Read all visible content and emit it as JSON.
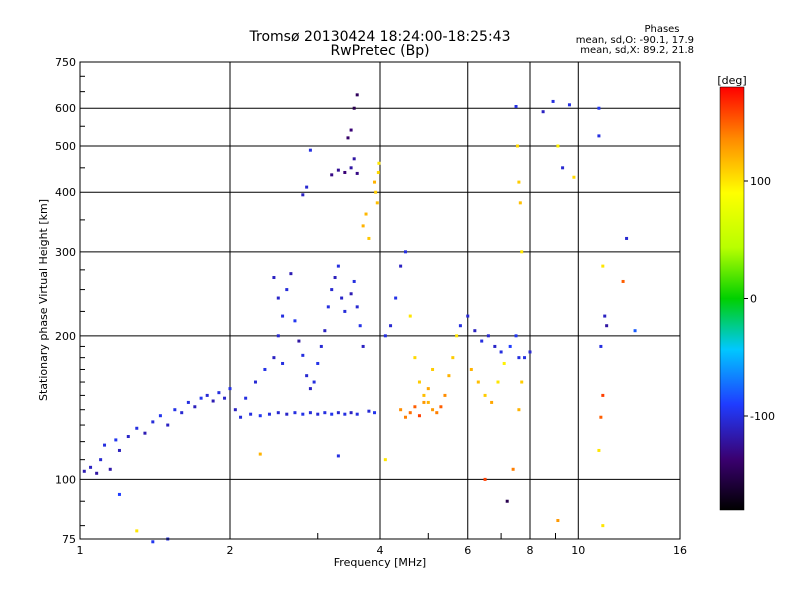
{
  "chart_data": {
    "type": "scatter",
    "title": "Tromsø 20130424 18:24:00-18:25:43",
    "subtitle": "RwPretec (Bp)",
    "xlabel": "Frequency [MHz]",
    "ylabel": "Stationary phase Virtual Height [km]",
    "x_scale": "log",
    "y_scale": "log",
    "xlim": [
      1,
      16
    ],
    "ylim": [
      75,
      750
    ],
    "x_ticks": [
      1,
      2,
      4,
      6,
      8,
      10,
      16
    ],
    "x_tick_labels": [
      "1",
      "2",
      "4",
      "6",
      "8",
      "10",
      "16"
    ],
    "y_ticks": [
      75,
      100,
      200,
      300,
      400,
      500,
      600,
      750
    ],
    "y_tick_labels": [
      "75",
      "100",
      "200",
      "300",
      "400",
      "500",
      "600",
      "750"
    ],
    "grid": true,
    "stats": {
      "heading": "Phases",
      "line_o": "mean, sd,O: -90.1, 17.9",
      "line_x": "mean, sd,X:  89.2, 21.8"
    },
    "colorbar": {
      "label": "[deg]",
      "range": [
        -180,
        180
      ],
      "ticks": [
        100,
        0,
        -100
      ],
      "tick_labels": [
        "100",
        "0",
        "-100"
      ]
    },
    "series": [
      {
        "points": [
          [
            1.02,
            104,
            -115
          ],
          [
            1.05,
            106,
            -110
          ],
          [
            1.08,
            103,
            -120
          ],
          [
            1.1,
            110,
            -105
          ],
          [
            1.12,
            118,
            -100
          ],
          [
            1.15,
            105,
            -118
          ],
          [
            1.18,
            121,
            -95
          ],
          [
            1.2,
            115,
            -112
          ],
          [
            1.25,
            123,
            -108
          ],
          [
            1.3,
            128,
            -100
          ],
          [
            1.35,
            125,
            -115
          ],
          [
            1.4,
            132,
            -102
          ],
          [
            1.45,
            136,
            -96
          ],
          [
            1.5,
            130,
            -110
          ],
          [
            1.55,
            140,
            -98
          ],
          [
            1.6,
            138,
            -105
          ],
          [
            1.65,
            145,
            -100
          ],
          [
            1.7,
            142,
            -112
          ],
          [
            1.75,
            148,
            -95
          ],
          [
            1.8,
            150,
            -104
          ],
          [
            1.85,
            146,
            -115
          ],
          [
            1.9,
            152,
            -100
          ],
          [
            1.95,
            148,
            -108
          ],
          [
            2.0,
            155,
            -98
          ],
          [
            2.05,
            140,
            -110
          ],
          [
            2.1,
            135,
            -102
          ],
          [
            2.2,
            137,
            -100
          ],
          [
            2.3,
            136,
            -95
          ],
          [
            2.4,
            137,
            -100
          ],
          [
            2.5,
            138,
            -105
          ],
          [
            2.6,
            137,
            -108
          ],
          [
            2.7,
            138,
            -100
          ],
          [
            2.8,
            137,
            -98
          ],
          [
            2.9,
            138,
            -102
          ],
          [
            3.0,
            137,
            -104
          ],
          [
            3.1,
            138,
            -100
          ],
          [
            3.2,
            137,
            -96
          ],
          [
            3.3,
            138,
            -106
          ],
          [
            3.4,
            137,
            -100
          ],
          [
            3.5,
            138,
            -110
          ],
          [
            3.6,
            137,
            -100
          ],
          [
            3.8,
            139,
            -104
          ],
          [
            3.9,
            138,
            -96
          ],
          [
            2.15,
            148,
            -100
          ],
          [
            2.25,
            160,
            -104
          ],
          [
            2.35,
            170,
            -98
          ],
          [
            2.45,
            180,
            -110
          ],
          [
            2.55,
            175,
            -100
          ],
          [
            2.5,
            200,
            -105
          ],
          [
            2.55,
            220,
            -100
          ],
          [
            2.45,
            265,
            -110
          ],
          [
            2.5,
            240,
            -108
          ],
          [
            2.6,
            250,
            -102
          ],
          [
            2.65,
            270,
            -115
          ],
          [
            2.7,
            215,
            -95
          ],
          [
            2.75,
            195,
            -120
          ],
          [
            2.8,
            182,
            -100
          ],
          [
            2.85,
            165,
            -105
          ],
          [
            2.9,
            155,
            -110
          ],
          [
            2.95,
            160,
            -100
          ],
          [
            3.0,
            175,
            -98
          ],
          [
            3.05,
            190,
            -104
          ],
          [
            3.1,
            205,
            -110
          ],
          [
            3.15,
            230,
            -100
          ],
          [
            3.2,
            250,
            -105
          ],
          [
            3.25,
            265,
            -112
          ],
          [
            3.3,
            280,
            -100
          ],
          [
            3.35,
            240,
            -108
          ],
          [
            3.4,
            225,
            -102
          ],
          [
            3.5,
            245,
            -115
          ],
          [
            3.55,
            260,
            -100
          ],
          [
            3.6,
            230,
            -105
          ],
          [
            3.65,
            210,
            -98
          ],
          [
            3.7,
            190,
            -110
          ],
          [
            3.2,
            435,
            -130
          ],
          [
            3.3,
            445,
            -125
          ],
          [
            3.4,
            440,
            -135
          ],
          [
            3.5,
            450,
            -120
          ],
          [
            3.6,
            438,
            -130
          ],
          [
            3.45,
            520,
            -140
          ],
          [
            3.5,
            540,
            -135
          ],
          [
            3.55,
            600,
            -150
          ],
          [
            3.6,
            640,
            -145
          ],
          [
            2.8,
            395,
            -110
          ],
          [
            2.85,
            410,
            -105
          ],
          [
            2.9,
            490,
            -100
          ],
          [
            3.55,
            470,
            -120
          ],
          [
            3.9,
            420,
            120
          ],
          [
            3.92,
            400,
            110
          ],
          [
            3.95,
            380,
            115
          ],
          [
            3.97,
            440,
            105
          ],
          [
            3.98,
            460,
            100
          ],
          [
            3.7,
            340,
            120
          ],
          [
            3.75,
            360,
            118
          ],
          [
            3.8,
            320,
            112
          ],
          [
            4.1,
            200,
            -100
          ],
          [
            4.2,
            210,
            -105
          ],
          [
            4.3,
            240,
            -98
          ],
          [
            4.4,
            280,
            -110
          ],
          [
            4.5,
            300,
            -100
          ],
          [
            4.6,
            220,
            100
          ],
          [
            4.7,
            180,
            105
          ],
          [
            4.8,
            160,
            110
          ],
          [
            4.9,
            150,
            115
          ],
          [
            5.0,
            145,
            120
          ],
          [
            5.1,
            140,
            130
          ],
          [
            5.2,
            138,
            140
          ],
          [
            5.3,
            142,
            150
          ],
          [
            5.4,
            150,
            135
          ],
          [
            5.5,
            165,
            120
          ],
          [
            5.6,
            180,
            110
          ],
          [
            5.7,
            200,
            100
          ],
          [
            4.4,
            140,
            135
          ],
          [
            4.5,
            135,
            140
          ],
          [
            4.6,
            138,
            145
          ],
          [
            4.7,
            142,
            150
          ],
          [
            4.8,
            136,
            160
          ],
          [
            4.9,
            145,
            130
          ],
          [
            5.0,
            155,
            125
          ],
          [
            5.1,
            170,
            110
          ],
          [
            5.8,
            210,
            -100
          ],
          [
            6.0,
            220,
            -105
          ],
          [
            6.2,
            205,
            -110
          ],
          [
            6.4,
            195,
            -100
          ],
          [
            6.6,
            200,
            -105
          ],
          [
            6.8,
            190,
            -108
          ],
          [
            7.0,
            185,
            -100
          ],
          [
            6.1,
            170,
            120
          ],
          [
            6.3,
            160,
            115
          ],
          [
            6.5,
            150,
            110
          ],
          [
            6.7,
            145,
            125
          ],
          [
            6.9,
            160,
            100
          ],
          [
            7.1,
            175,
            95
          ],
          [
            7.3,
            190,
            -90
          ],
          [
            7.5,
            200,
            -95
          ],
          [
            7.6,
            180,
            -100
          ],
          [
            7.5,
            605,
            -100
          ],
          [
            7.55,
            500,
            105
          ],
          [
            7.6,
            420,
            110
          ],
          [
            7.65,
            380,
            115
          ],
          [
            7.7,
            300,
            100
          ],
          [
            7.6,
            140,
            120
          ],
          [
            7.7,
            160,
            110
          ],
          [
            7.8,
            180,
            -100
          ],
          [
            8.0,
            185,
            -105
          ],
          [
            8.5,
            590,
            -110
          ],
          [
            8.9,
            620,
            -100
          ],
          [
            9.1,
            500,
            95
          ],
          [
            9.3,
            450,
            -105
          ],
          [
            9.8,
            430,
            105
          ],
          [
            9.6,
            610,
            -100
          ],
          [
            11.0,
            600,
            -95
          ],
          [
            11.0,
            525,
            -100
          ],
          [
            11.2,
            280,
            100
          ],
          [
            11.3,
            220,
            -110
          ],
          [
            11.1,
            190,
            -100
          ],
          [
            11.4,
            210,
            -120
          ],
          [
            12.5,
            320,
            -105
          ],
          [
            12.3,
            260,
            150
          ],
          [
            13.0,
            205,
            -80
          ],
          [
            11.2,
            150,
            160
          ],
          [
            11.1,
            135,
            150
          ],
          [
            11.0,
            115,
            100
          ],
          [
            11.2,
            80,
            100
          ],
          [
            9.1,
            82,
            130
          ],
          [
            7.2,
            90,
            -150
          ],
          [
            7.4,
            105,
            140
          ],
          [
            6.5,
            100,
            160
          ],
          [
            1.3,
            78,
            100
          ],
          [
            1.2,
            93,
            -90
          ],
          [
            1.4,
            74,
            -95
          ],
          [
            1.5,
            75,
            -100
          ],
          [
            2.3,
            113,
            120
          ],
          [
            3.3,
            112,
            -100
          ],
          [
            4.1,
            110,
            100
          ]
        ]
      }
    ]
  }
}
